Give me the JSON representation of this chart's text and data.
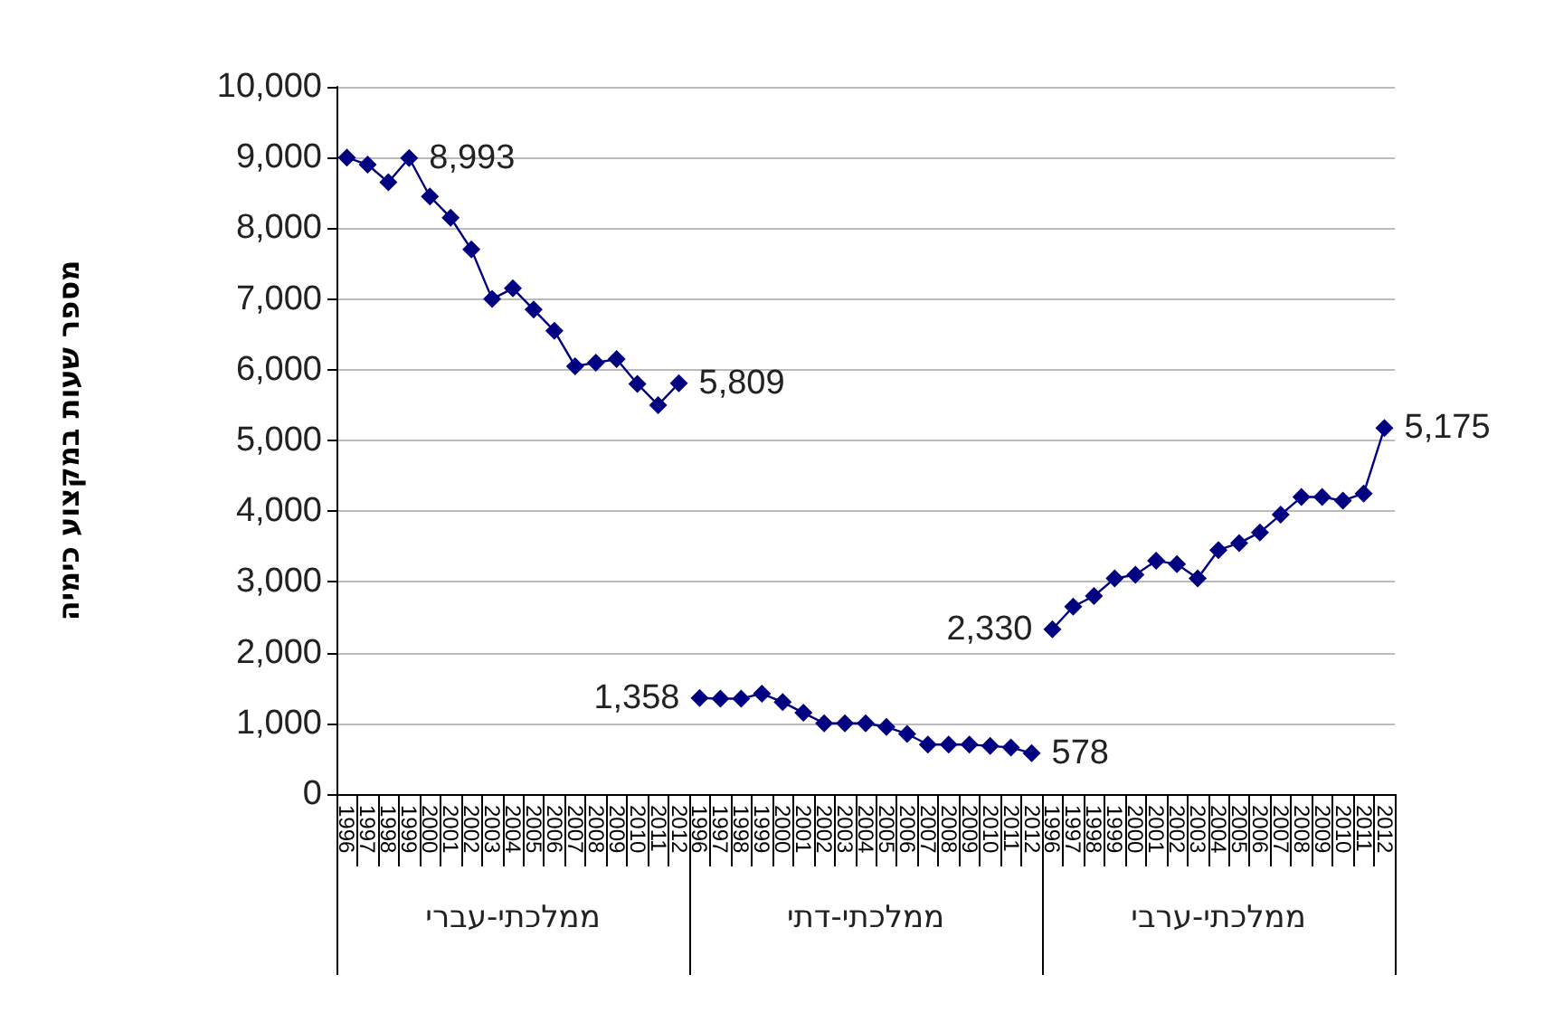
{
  "chart_data": {
    "type": "line",
    "ylabel": "מספר שעות במקצוע כימיה",
    "categories": [
      "1996",
      "1997",
      "1998",
      "1999",
      "2000",
      "2001",
      "2002",
      "2003",
      "2004",
      "2005",
      "2006",
      "2007",
      "2008",
      "2009",
      "2010",
      "2011",
      "2012",
      "1996",
      "1997",
      "1998",
      "1999",
      "2000",
      "2001",
      "2002",
      "2003",
      "2004",
      "2005",
      "2006",
      "2007",
      "2008",
      "2009",
      "2010",
      "2011",
      "2012",
      "1996",
      "1997",
      "1998",
      "1999",
      "2000",
      "2001",
      "2002",
      "2003",
      "2004",
      "2005",
      "2006",
      "2007",
      "2008",
      "2009",
      "2010",
      "2011",
      "2012"
    ],
    "annotations": [
      "ממלכתי-עברי",
      "ממלכתי-דתי",
      "ממלכתי-ערבי"
    ],
    "series": [
      {
        "color": "#000080",
        "values": [
          9000,
          8900,
          8650,
          8993,
          8450,
          8150,
          7700,
          7000,
          7150,
          6850,
          6550,
          6050,
          6100,
          6150,
          5800,
          5500,
          5809,
          null,
          null,
          null,
          null,
          null,
          null,
          null,
          null,
          null,
          null,
          null,
          null,
          null,
          null,
          null,
          null,
          null,
          null,
          null,
          null,
          null,
          null,
          null,
          null,
          null,
          null,
          null,
          null,
          null,
          null,
          null,
          null,
          null,
          null
        ],
        "value_labels": [
          null,
          null,
          null,
          "8,993",
          null,
          null,
          null,
          null,
          null,
          null,
          null,
          null,
          null,
          null,
          null,
          null,
          "5,809",
          null,
          null,
          null,
          null,
          null,
          null,
          null,
          null,
          null,
          null,
          null,
          null,
          null,
          null,
          null,
          null,
          null,
          null,
          null,
          null,
          null,
          null,
          null,
          null,
          null,
          null,
          null,
          null,
          null,
          null,
          null,
          null,
          null,
          null
        ]
      },
      {
        "color": "#000080",
        "values": [
          null,
          null,
          null,
          null,
          null,
          null,
          null,
          null,
          null,
          null,
          null,
          null,
          null,
          null,
          null,
          null,
          null,
          1358,
          1350,
          1350,
          1420,
          1300,
          1150,
          1000,
          1000,
          1000,
          950,
          850,
          700,
          700,
          700,
          680,
          660,
          578,
          null,
          null,
          null,
          null,
          null,
          null,
          null,
          null,
          null,
          null,
          null,
          null,
          null,
          null,
          null,
          null,
          null
        ],
        "value_labels": [
          null,
          null,
          null,
          null,
          null,
          null,
          null,
          null,
          null,
          null,
          null,
          null,
          null,
          null,
          null,
          null,
          null,
          "1,358",
          null,
          null,
          null,
          null,
          null,
          null,
          null,
          null,
          null,
          null,
          null,
          null,
          null,
          null,
          null,
          "578",
          null,
          null,
          null,
          null,
          null,
          null,
          null,
          null,
          null,
          null,
          null,
          null,
          null,
          null,
          null,
          null,
          null
        ]
      },
      {
        "color": "#000080",
        "values": [
          null,
          null,
          null,
          null,
          null,
          null,
          null,
          null,
          null,
          null,
          null,
          null,
          null,
          null,
          null,
          null,
          null,
          null,
          null,
          null,
          null,
          null,
          null,
          null,
          null,
          null,
          null,
          null,
          null,
          null,
          null,
          null,
          null,
          null,
          2330,
          2650,
          2800,
          3050,
          3100,
          3300,
          3250,
          3050,
          3450,
          3550,
          3700,
          3950,
          4200,
          4200,
          4150,
          4250,
          5175
        ],
        "value_labels": [
          null,
          null,
          null,
          null,
          null,
          null,
          null,
          null,
          null,
          null,
          null,
          null,
          null,
          null,
          null,
          null,
          null,
          null,
          null,
          null,
          null,
          null,
          null,
          null,
          null,
          null,
          null,
          null,
          null,
          null,
          null,
          null,
          null,
          null,
          "2,330",
          null,
          null,
          null,
          null,
          null,
          null,
          null,
          null,
          null,
          null,
          null,
          null,
          null,
          null,
          null,
          "5,175"
        ]
      }
    ],
    "ylim": [
      0,
      10000
    ],
    "yticks": [
      0,
      {
        "value": 1000,
        "label": "1,000"
      },
      {
        "value": 2000,
        "label": "2,000"
      },
      {
        "value": 3000,
        "label": "3,000"
      },
      {
        "value": 4000,
        "label": "4,000"
      },
      {
        "value": 5000,
        "label": "5,000"
      },
      {
        "value": 6000,
        "label": "6,000"
      },
      {
        "value": 7000,
        "label": "7,000"
      },
      {
        "value": 8000,
        "label": "8,000"
      },
      {
        "value": 9000,
        "label": "9,000"
      },
      {
        "value": 10000,
        "label": "10,000"
      }
    ],
    "grid": "y",
    "marker": "diamond",
    "line_style": "solid"
  }
}
